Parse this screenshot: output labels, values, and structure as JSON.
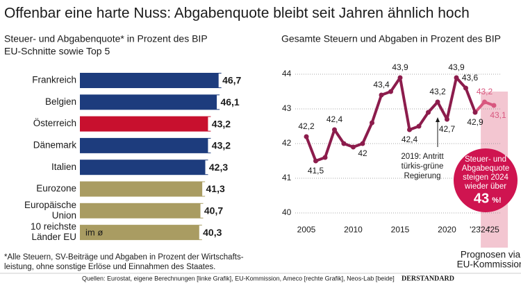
{
  "title": "Offenbar eine harte Nuss: Abgabenquote bleibt seit Jahren ähnlich hoch",
  "footnote": [
    "*Alle Steuern, SV-Beiträge und Abgaben in Prozent der Wirtschafts-",
    "leistung, ohne sonstige Erlöse und Einnahmen des Staates."
  ],
  "source": "Quellen: Eurostat, eigene Berechnungen [linke Grafik], EU-Kommission, Ameco [rechte Grafik], Neos-Lab [beide]",
  "brand": "DERSTANDARD",
  "chart_data": [
    {
      "type": "barh",
      "subtitle": [
        "Steuer- und Abgabenquote* in Prozent des BIP",
        "EU-Schnitte sowie Top 5"
      ],
      "categories": [
        [
          "Frankreich"
        ],
        [
          "Belgien"
        ],
        [
          "Österreich"
        ],
        [
          "Dänemark"
        ],
        [
          "Italien"
        ],
        [
          "Eurozone"
        ],
        [
          "Europäische",
          "Union"
        ],
        [
          "10 reichste",
          "Länder EU"
        ]
      ],
      "values": [
        46.7,
        46.1,
        43.2,
        43.2,
        42.3,
        41.3,
        40.7,
        40.3
      ],
      "value_labels": [
        "46,7",
        "46,1",
        "43,2",
        "43,2",
        "42,3",
        "41,3",
        "40,7",
        "40,3"
      ],
      "colors": [
        "#1d3c7d",
        "#1d3c7d",
        "#c8102e",
        "#1d3c7d",
        "#1d3c7d",
        "#a99c62",
        "#a99c62",
        "#a99c62"
      ],
      "bar_note": "im ø",
      "xlim": [
        0,
        47
      ]
    },
    {
      "type": "line",
      "subtitle": [
        "Gesamte Steuern und Abgaben in Prozent des BIP"
      ],
      "x": [
        2005,
        2006,
        2007,
        2008,
        2009,
        2010,
        2011,
        2012,
        2013,
        2014,
        2015,
        2016,
        2017,
        2018,
        2019,
        2020,
        2021,
        2022,
        2023,
        2024,
        2025
      ],
      "series": [
        {
          "color": "#8c1c4c",
          "values": [
            42.2,
            41.5,
            41.6,
            42.4,
            42.0,
            41.9,
            42.0,
            42.6,
            43.4,
            43.5,
            43.9,
            42.4,
            42.5,
            42.9,
            43.2,
            42.7,
            43.9,
            43.6,
            42.9,
            43.2,
            43.1
          ],
          "value_labels": [
            "42,2",
            "41,5",
            null,
            "42,4",
            null,
            null,
            "42",
            null,
            "43,4",
            null,
            "43,9",
            "42,4",
            null,
            null,
            "43,2",
            "42,7",
            "43,9",
            "43,6",
            "42,9",
            "43,2",
            "43,1"
          ]
        }
      ],
      "forecast_from": 2023,
      "forecast_color": "#d8577f",
      "forecast_band_color": "#f3c6d1",
      "forecast_label": [
        "Prognosen via",
        "EU-Kommission"
      ],
      "xticks": [
        2005,
        2010,
        2015,
        2020,
        {
          "value": 2023,
          "label": "'23"
        },
        {
          "value": 2024,
          "label": "'24"
        },
        {
          "value": 2025,
          "label": "'25"
        }
      ],
      "ylim": [
        39.8,
        44.2
      ],
      "yticks": [
        40,
        41,
        42,
        43,
        44
      ],
      "grid": true,
      "annotation": {
        "x": 2019,
        "lines": [
          "2019: Antritt",
          "türkis-grüne",
          "Regierung"
        ]
      },
      "badge": {
        "lines": [
          "Steuer- und",
          "Abgabequote",
          "steigen 2024",
          "wieder über"
        ],
        "value": 43,
        "unit": "%!",
        "color": "#cf1450"
      }
    }
  ]
}
